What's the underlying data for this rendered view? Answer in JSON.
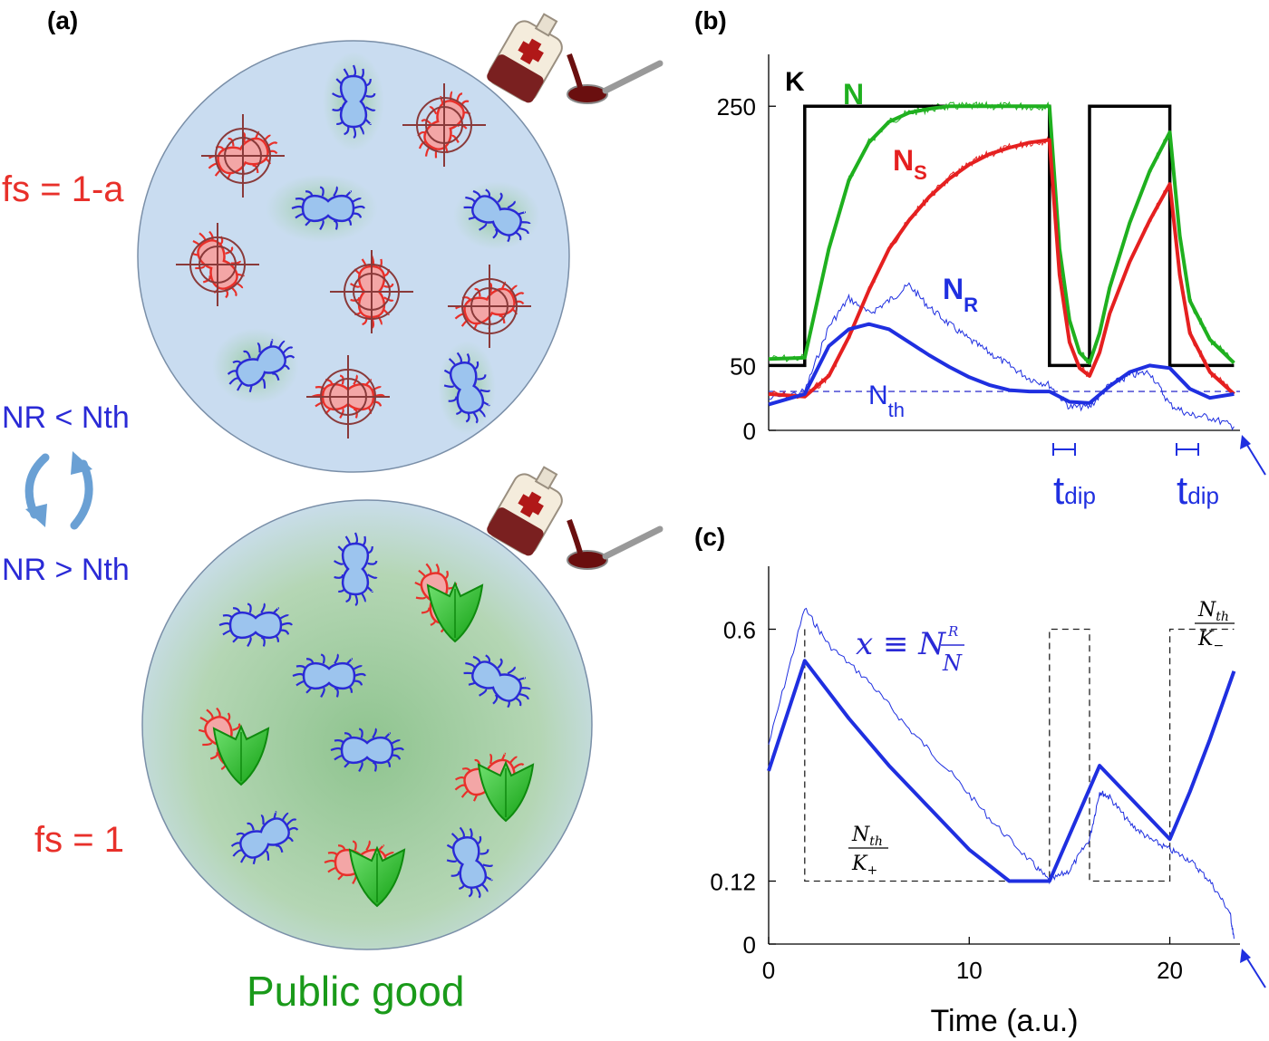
{
  "panels": {
    "a": "(a)",
    "b": "(b)",
    "c": "(c)"
  },
  "panel_a": {
    "fs_top": "fs = 1-a",
    "fs_bottom": "fs = 1",
    "nr_less": "NR < Nth",
    "nr_greater": "NR > Nth",
    "public_good": "Public good",
    "colors": {
      "sensitive": "#e8302a",
      "resistant": "#2a2ad6",
      "public_good": "#1a9a1a",
      "dish": "#c9dcf0"
    }
  },
  "chart_data": [
    {
      "type": "line",
      "panel": "b",
      "ylim": [
        0,
        290
      ],
      "xlim": [
        0,
        23.5
      ],
      "yticks": [
        0,
        50,
        250
      ],
      "ytick_labels": [
        "0",
        "50",
        "250"
      ],
      "labels": {
        "K": "K",
        "N": "N",
        "NS": "N",
        "NS_sub": "S",
        "NR": "N",
        "NR_sub": "R",
        "Nth": "N",
        "Nth_sub": "th",
        "tdip": "t",
        "tdip_sub": "dip"
      },
      "threshold": 30,
      "series": [
        {
          "name": "K",
          "color": "#000000",
          "x": [
            0,
            1.8,
            1.8,
            14,
            14,
            16,
            16,
            20,
            20,
            23.2
          ],
          "y": [
            50,
            50,
            250,
            250,
            50,
            50,
            250,
            250,
            50,
            50
          ]
        },
        {
          "name": "N",
          "color": "#1fb01f",
          "x": [
            0,
            1.8,
            3,
            4,
            5,
            6,
            7,
            8,
            9,
            10,
            11,
            12,
            13,
            14,
            14.5,
            15,
            15.5,
            16,
            16.5,
            17,
            18,
            19,
            20,
            20.5,
            21,
            22,
            23.2
          ],
          "y": [
            55,
            56,
            140,
            193,
            222,
            238,
            245,
            248,
            250,
            250,
            250,
            250,
            250,
            250,
            140,
            85,
            60,
            52,
            75,
            110,
            160,
            200,
            230,
            150,
            100,
            70,
            52
          ]
        },
        {
          "name": "NS",
          "color": "#e52020",
          "x": [
            0,
            1.8,
            3,
            4,
            5,
            6,
            7,
            8,
            9,
            10,
            11,
            12,
            13,
            14,
            14.5,
            15,
            15.5,
            16,
            16.5,
            17,
            18,
            19,
            20,
            20.5,
            21,
            22,
            23.2
          ],
          "y": [
            28,
            26,
            42,
            72,
            108,
            140,
            162,
            180,
            194,
            205,
            213,
            218,
            222,
            224,
            120,
            68,
            48,
            42,
            60,
            90,
            130,
            162,
            190,
            120,
            75,
            45,
            28
          ]
        },
        {
          "name": "NR",
          "color": "#1f2fe0",
          "x": [
            0,
            1.8,
            3,
            4,
            5,
            6,
            7,
            8,
            9,
            10,
            11,
            12,
            13,
            14,
            15,
            16,
            17,
            18,
            19,
            20,
            21,
            22,
            23.2
          ],
          "y": [
            20,
            28,
            65,
            78,
            82,
            78,
            68,
            58,
            49,
            41,
            35,
            31,
            30,
            30,
            22,
            21,
            34,
            45,
            50,
            48,
            32,
            25,
            28
          ]
        },
        {
          "name": "NR_sim",
          "color": "#1f2fe0",
          "x": [
            0,
            1.8,
            3,
            4,
            5,
            6,
            7,
            8,
            9,
            10,
            11,
            12,
            13,
            14,
            15,
            16,
            17,
            18,
            19,
            20,
            21,
            22,
            23.2
          ],
          "y": [
            24,
            30,
            80,
            102,
            90,
            100,
            112,
            95,
            82,
            70,
            60,
            50,
            40,
            35,
            18,
            18,
            35,
            42,
            45,
            20,
            12,
            10,
            3
          ]
        }
      ]
    },
    {
      "type": "line",
      "panel": "c",
      "xlabel": "Time (a.u.)",
      "xlim": [
        0,
        23.5
      ],
      "ylim": [
        0,
        0.72
      ],
      "xticks": [
        0,
        10,
        20
      ],
      "xtick_labels": [
        "0",
        "10",
        "20"
      ],
      "yticks": [
        0,
        0.12,
        0.6
      ],
      "ytick_labels": [
        "0",
        "0.12",
        "0.6"
      ],
      "labels": {
        "x_eq": "x ≡ N",
        "x_eq_num": "R",
        "x_eq_den": "N",
        "low_frac_num": "N",
        "low_frac_num_sub": "th",
        "low_frac_den": "K",
        "low_frac_den_sub": "+",
        "high_frac_num": "N",
        "high_frac_num_sub": "th",
        "high_frac_den": "K",
        "high_frac_den_sub": "−"
      },
      "series": [
        {
          "name": "x",
          "color": "#1f2fe0",
          "x": [
            0,
            1.8,
            4,
            6,
            8,
            10,
            12,
            14,
            16.5,
            20,
            21,
            22,
            23.2
          ],
          "y": [
            0.33,
            0.54,
            0.43,
            0.34,
            0.26,
            0.18,
            0.12,
            0.12,
            0.34,
            0.2,
            0.29,
            0.39,
            0.52
          ]
        },
        {
          "name": "x_sim",
          "color": "#1f2fe0",
          "x": [
            0,
            1.8,
            3,
            5,
            7,
            9,
            11,
            13,
            14,
            15,
            16,
            16.5,
            17,
            18,
            19,
            20,
            21,
            22,
            23,
            23.2
          ],
          "y": [
            0.38,
            0.64,
            0.57,
            0.5,
            0.41,
            0.33,
            0.24,
            0.16,
            0.12,
            0.14,
            0.2,
            0.29,
            0.28,
            0.23,
            0.2,
            0.18,
            0.16,
            0.12,
            0.06,
            0.01
          ]
        },
        {
          "name": "threshold_ratio",
          "color": "#222222",
          "x": [
            1.8,
            1.8,
            14,
            14,
            16,
            16,
            20,
            20,
            23.2
          ],
          "y": [
            0.6,
            0.12,
            0.12,
            0.6,
            0.6,
            0.12,
            0.12,
            0.6,
            0.6
          ]
        }
      ]
    }
  ]
}
